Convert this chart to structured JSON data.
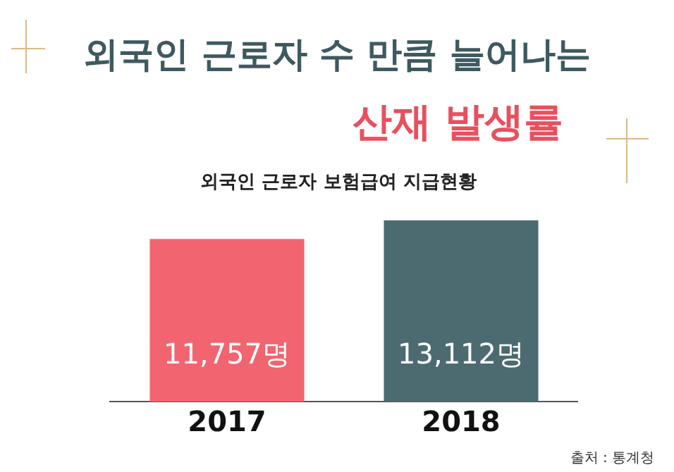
{
  "chart_data": {
    "type": "bar",
    "title": "외국인 근로자 수 만큼 늘어나는",
    "subtitle": "산재 발생률",
    "annotations": [
      "외국인 근로자 보험급여 지급현황",
      "출처 : 통계청"
    ],
    "categories": [
      "2017",
      "2018"
    ],
    "values": [
      11757,
      13112
    ],
    "colors": [
      "#f2646f",
      "#4b6b71"
    ],
    "value_labels": [
      "11,757명",
      "13,112명"
    ],
    "relative": false,
    "grid": false,
    "legend": false
  }
}
